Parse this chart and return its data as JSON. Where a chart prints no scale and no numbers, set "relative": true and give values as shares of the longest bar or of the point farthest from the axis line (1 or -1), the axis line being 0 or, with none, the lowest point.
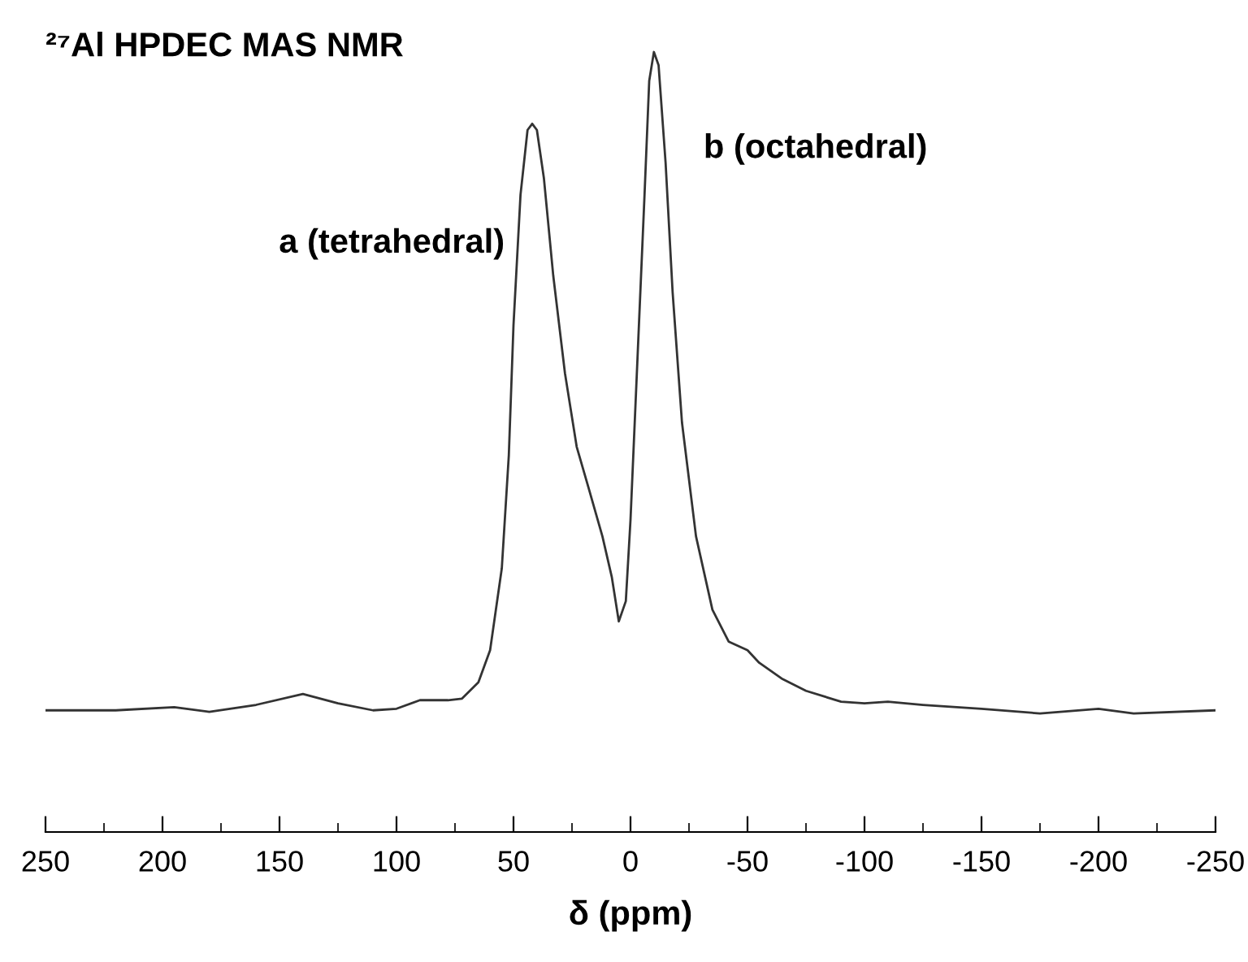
{
  "chart_data": {
    "type": "line",
    "title": "²⁷Al HPDEC MAS NMR",
    "xlabel": "δ (ppm)",
    "relative": true,
    "xlim": [
      250,
      -250
    ],
    "xticks": [
      250,
      {
        "value": 225,
        "label": null
      },
      200,
      {
        "value": 175,
        "label": null
      },
      150,
      {
        "value": 125,
        "label": null
      },
      100,
      {
        "value": 75,
        "label": null
      },
      50,
      {
        "value": 25,
        "label": null
      },
      0,
      {
        "value": -25,
        "label": null
      },
      -50,
      {
        "value": -75,
        "label": null
      },
      -100,
      {
        "value": -125,
        "label": null
      },
      -150,
      {
        "value": -175,
        "label": null
      },
      -200,
      {
        "value": -225,
        "label": null
      },
      -250
    ],
    "annotations": [
      {
        "text": "a (tetrahedral)",
        "x": 48,
        "y": 0.754
      },
      {
        "text": "b (octahedral)",
        "x": -10,
        "y": 1.0
      }
    ],
    "grid": false,
    "marker": "none",
    "line_style": "solid",
    "series": [
      {
        "color": "#333333",
        "x": [
          250,
          220,
          195,
          180,
          160,
          140,
          125,
          110,
          100,
          90,
          78,
          72,
          65,
          60,
          55,
          52,
          50,
          47,
          44,
          42,
          40,
          37,
          33,
          28,
          23,
          18,
          12,
          8,
          5,
          2,
          0,
          -3,
          -6,
          -8,
          -10,
          -12,
          -15,
          -18,
          -22,
          -28,
          -35,
          -42,
          -50,
          -55,
          -65,
          -75,
          -90,
          -100,
          -110,
          -125,
          -150,
          -175,
          -200,
          -215,
          -250
        ],
        "values": [
          0.156,
          0.156,
          0.16,
          0.154,
          0.163,
          0.177,
          0.165,
          0.156,
          0.158,
          0.169,
          0.169,
          0.171,
          0.192,
          0.233,
          0.338,
          0.483,
          0.65,
          0.817,
          0.9,
          0.908,
          0.9,
          0.838,
          0.713,
          0.588,
          0.494,
          0.442,
          0.379,
          0.327,
          0.27,
          0.296,
          0.4,
          0.608,
          0.817,
          0.963,
          1.0,
          0.983,
          0.858,
          0.692,
          0.525,
          0.379,
          0.285,
          0.244,
          0.233,
          0.217,
          0.196,
          0.181,
          0.167,
          0.165,
          0.167,
          0.163,
          0.158,
          0.152,
          0.158,
          0.152,
          0.156
        ]
      }
    ]
  }
}
